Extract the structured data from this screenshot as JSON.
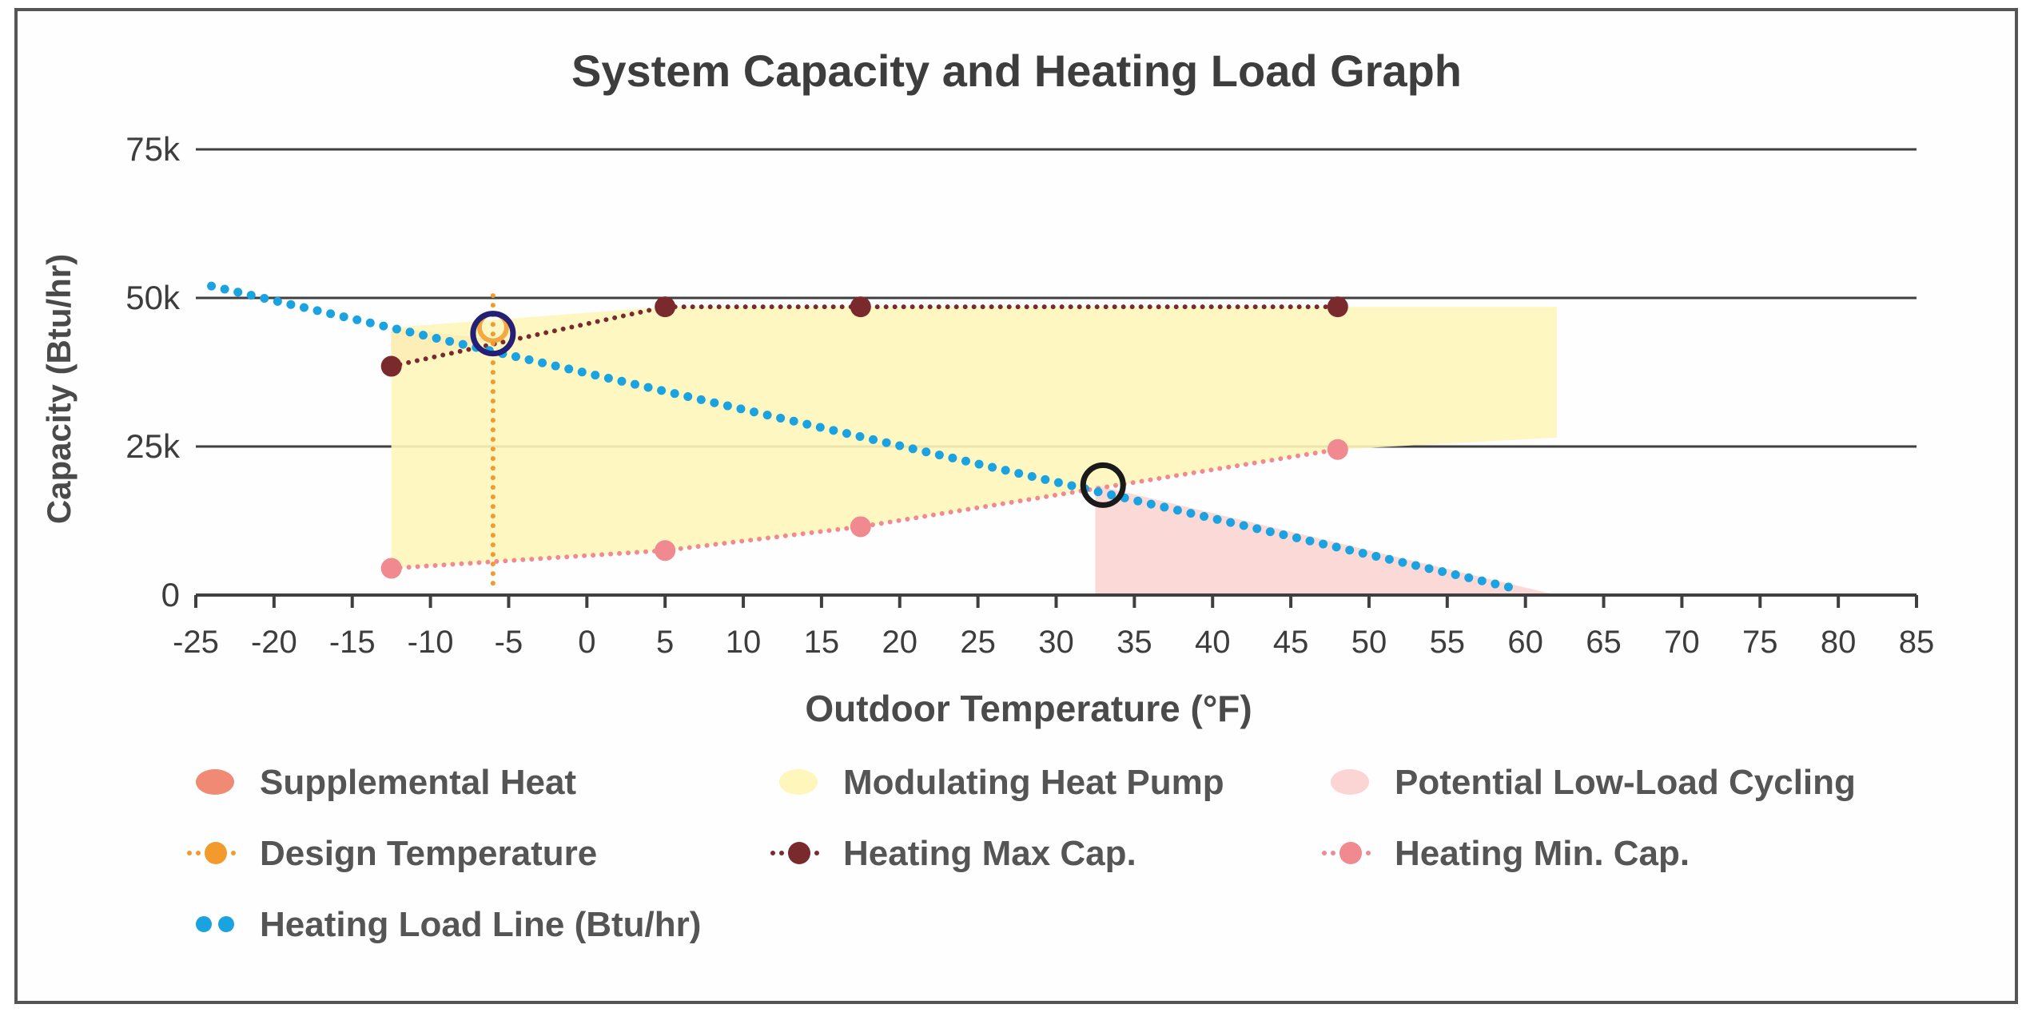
{
  "chart_data": {
    "type": "line",
    "title": "System Capacity and Heating Load Graph",
    "xlabel": "Outdoor Temperature (°F)",
    "ylabel": "Capacity (Btu/hr)",
    "xlim": [
      -25,
      85
    ],
    "ylim": [
      0,
      75000
    ],
    "x_ticks": [
      -25,
      -20,
      -15,
      -10,
      -5,
      0,
      5,
      10,
      15,
      20,
      25,
      30,
      35,
      40,
      45,
      50,
      55,
      60,
      65,
      70,
      75,
      80,
      85
    ],
    "x_tick_labels": [
      "-25",
      "-20",
      "-15",
      "-10",
      "-5",
      "0",
      "5",
      "10",
      "15",
      "20",
      "25",
      "30",
      "35",
      "40",
      "45",
      "50",
      "55",
      "60",
      "65",
      "70",
      "75",
      "80",
      "85"
    ],
    "y_ticks": [
      0,
      25000,
      50000,
      75000
    ],
    "y_tick_labels": [
      "0",
      "25k",
      "50k",
      "75k"
    ],
    "grid": "horizontal",
    "legend_position": "bottom",
    "series": [
      {
        "name": "Heating Max Cap.",
        "style": "dotted-line-markers",
        "color": "#7a2a2d",
        "points": [
          [
            -12.5,
            38500
          ],
          [
            5,
            48500
          ],
          [
            17.5,
            48500
          ],
          [
            48,
            48500
          ]
        ]
      },
      {
        "name": "Heating Min. Cap.",
        "style": "dotted-line-markers",
        "color": "#f08a90",
        "points": [
          [
            -12.5,
            4500
          ],
          [
            5,
            7500
          ],
          [
            17.5,
            11500
          ],
          [
            48,
            24500
          ]
        ]
      },
      {
        "name": "Heating Load Line (Btu/hr)",
        "style": "dots",
        "color": "#1aa3e0",
        "points": [
          [
            -24,
            52000
          ],
          [
            59.5,
            1000
          ]
        ]
      },
      {
        "name": "Design Temperature",
        "style": "vertical-dotted",
        "color": "#f39a2c",
        "x": -6,
        "y_range": [
          2000,
          51000
        ],
        "marker_y": 44000
      }
    ],
    "areas": [
      {
        "name": "Supplemental Heat",
        "color": "#f08a74",
        "points": [
          [
            -12.5,
            38500
          ],
          [
            -12.5,
            45000
          ],
          [
            -6,
            43000
          ]
        ]
      },
      {
        "name": "Modulating Heat Pump",
        "color": "#fef6bb",
        "points": [
          [
            -12.5,
            4500
          ],
          [
            -12.5,
            45000
          ],
          [
            5,
            48500
          ],
          [
            62,
            48500
          ],
          [
            62,
            26500
          ],
          [
            48,
            24500
          ],
          [
            17.5,
            11500
          ],
          [
            5,
            7500
          ]
        ]
      },
      {
        "name": "Potential Low-Load Cycling",
        "color": "#fbd5d3",
        "points": [
          [
            32.5,
            0
          ],
          [
            32.5,
            18500
          ],
          [
            62,
            0
          ]
        ]
      }
    ],
    "annotations": [
      {
        "type": "circle",
        "color": "#232075",
        "x": -6,
        "y": 44000,
        "meaning": "design point"
      },
      {
        "type": "circle",
        "color": "#1a1a1a",
        "x": 33,
        "y": 18500,
        "meaning": "balance point"
      }
    ],
    "legend": [
      {
        "label": "Supplemental Heat",
        "swatch": "oval",
        "color": "#f08a74"
      },
      {
        "label": "Modulating Heat Pump",
        "swatch": "oval",
        "color": "#fef6bb"
      },
      {
        "label": "Potential Low-Load Cycling",
        "swatch": "oval",
        "color": "#fbd5d3"
      },
      {
        "label": "Design Temperature",
        "swatch": "dotted-marker",
        "color": "#f39a2c"
      },
      {
        "label": "Heating Max Cap.",
        "swatch": "dotted-marker",
        "color": "#7a2a2d"
      },
      {
        "label": "Heating Min. Cap.",
        "swatch": "dotted-marker",
        "color": "#f08a90"
      },
      {
        "label": "Heating Load Line (Btu/hr)",
        "swatch": "two-dots",
        "color": "#1aa3e0"
      }
    ]
  }
}
